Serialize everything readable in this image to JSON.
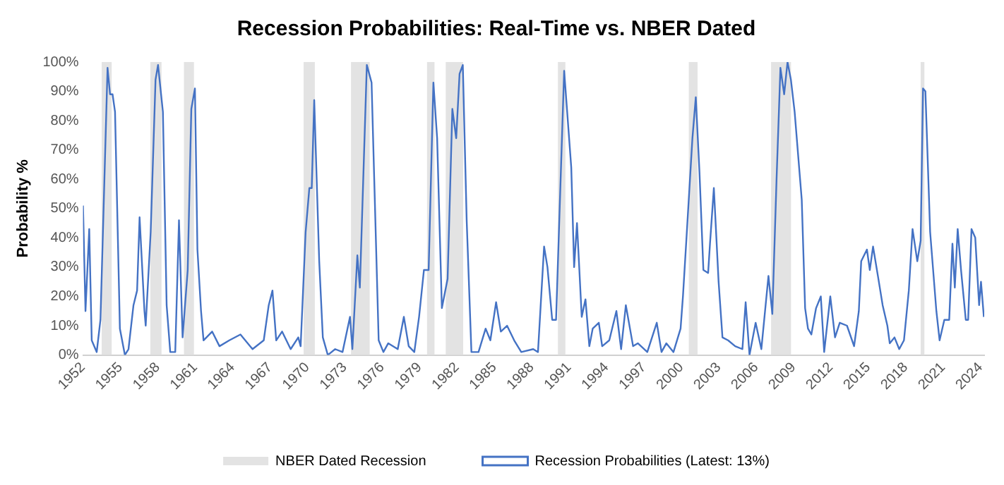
{
  "chart_data": {
    "type": "line",
    "title": "Recession Probabilities: Real-Time vs. NBER Dated",
    "ylabel": "Probability %",
    "xlim": [
      1952,
      2024.3
    ],
    "xticks": [
      1952,
      1955,
      1958,
      1961,
      1964,
      1967,
      1970,
      1973,
      1976,
      1979,
      1982,
      1985,
      1988,
      1991,
      1994,
      1997,
      2000,
      2003,
      2006,
      2009,
      2012,
      2015,
      2018,
      2021,
      2024
    ],
    "ylim": [
      0,
      100
    ],
    "yticks": [
      {
        "value": 0,
        "label": "0%"
      },
      {
        "value": 10,
        "label": "10%"
      },
      {
        "value": 20,
        "label": "20%"
      },
      {
        "value": 30,
        "label": "30%"
      },
      {
        "value": 40,
        "label": "40%"
      },
      {
        "value": 50,
        "label": "50%"
      },
      {
        "value": 60,
        "label": "60%"
      },
      {
        "value": 70,
        "label": "70%"
      },
      {
        "value": 80,
        "label": "80%"
      },
      {
        "value": 90,
        "label": "90%"
      },
      {
        "value": 100,
        "label": "100%"
      }
    ],
    "grid": false,
    "legend": "bottom",
    "bands": [
      {
        "axis": "x",
        "from": 1953.5,
        "to": 1954.3,
        "label": "NBER Dated Recession",
        "color": "#e3e3e3"
      },
      {
        "axis": "x",
        "from": 1957.4,
        "to": 1958.3,
        "color": "#e3e3e3"
      },
      {
        "axis": "x",
        "from": 1960.1,
        "to": 1960.9,
        "color": "#e3e3e3"
      },
      {
        "axis": "x",
        "from": 1969.7,
        "to": 1970.6,
        "color": "#e3e3e3"
      },
      {
        "axis": "x",
        "from": 1973.5,
        "to": 1975.0,
        "color": "#e3e3e3"
      },
      {
        "axis": "x",
        "from": 1979.6,
        "to": 1980.2,
        "color": "#e3e3e3"
      },
      {
        "axis": "x",
        "from": 1981.1,
        "to": 1982.5,
        "color": "#e3e3e3"
      },
      {
        "axis": "x",
        "from": 1990.1,
        "to": 1990.7,
        "color": "#e3e3e3"
      },
      {
        "axis": "x",
        "from": 2000.6,
        "to": 2001.3,
        "color": "#e3e3e3"
      },
      {
        "axis": "x",
        "from": 2007.2,
        "to": 2008.8,
        "color": "#e3e3e3"
      },
      {
        "axis": "x",
        "from": 2019.2,
        "to": 2019.5,
        "color": "#e3e3e3"
      }
    ],
    "series": [
      {
        "name": "Recession Probabilities (Latest: 13%)",
        "color": "#4472c4",
        "x": [
          1952.0,
          1952.2,
          1952.5,
          1952.7,
          1953.1,
          1953.4,
          1953.97,
          1954.17,
          1954.37,
          1954.57,
          1954.96,
          1955.36,
          1955.65,
          1956.05,
          1956.34,
          1956.54,
          1956.93,
          1957.03,
          1957.43,
          1957.82,
          1958.02,
          1958.41,
          1958.71,
          1959.0,
          1959.4,
          1959.7,
          1959.99,
          1960.4,
          1960.69,
          1960.98,
          1961.18,
          1961.47,
          1961.67,
          1962.36,
          1962.95,
          1963.74,
          1964.63,
          1965.6,
          1966.5,
          1966.9,
          1967.2,
          1967.5,
          1967.97,
          1968.66,
          1969.27,
          1969.46,
          1969.86,
          1970.16,
          1970.35,
          1970.55,
          1970.95,
          1971.24,
          1971.64,
          1972.23,
          1972.82,
          1973.42,
          1973.61,
          1974.01,
          1974.21,
          1974.77,
          1975.15,
          1975.72,
          1976.1,
          1976.49,
          1977.25,
          1977.74,
          1978.13,
          1978.58,
          1978.96,
          1979.35,
          1979.73,
          1980.11,
          1980.41,
          1980.79,
          1981.25,
          1981.63,
          1981.94,
          1982.21,
          1982.47,
          1982.78,
          1983.16,
          1983.73,
          1984.3,
          1984.68,
          1985.14,
          1985.52,
          1986.02,
          1986.59,
          1987.16,
          1988.12,
          1988.5,
          1988.99,
          1989.26,
          1989.64,
          1989.95,
          1990.6,
          1991.17,
          1991.4,
          1991.63,
          1992.01,
          1992.31,
          1992.62,
          1992.89,
          1993.38,
          1993.65,
          1994.22,
          1994.79,
          1995.17,
          1995.55,
          1996.13,
          1996.51,
          1997.27,
          1998.03,
          1998.41,
          1998.8,
          1999.37,
          1999.94,
          2000.13,
          2000.4,
          2000.89,
          2001.16,
          2001.46,
          2001.77,
          2002.15,
          2002.3,
          2002.61,
          2002.99,
          2003.3,
          2003.75,
          2004.32,
          2004.9,
          2005.16,
          2005.47,
          2005.96,
          2006.42,
          2006.99,
          2007.3,
          2007.64,
          2007.95,
          2008.25,
          2008.52,
          2008.79,
          2009.09,
          2009.66,
          2009.93,
          2010.16,
          2010.43,
          2010.81,
          2011.19,
          2011.46,
          2011.95,
          2012.33,
          2012.71,
          2013.29,
          2013.86,
          2014.24,
          2014.43,
          2014.89,
          2015.12,
          2015.38,
          2015.77,
          2016.15,
          2016.53,
          2016.72,
          2017.1,
          2017.48,
          2017.86,
          2018.25,
          2018.55,
          2018.93,
          2019.2,
          2019.39,
          2019.58,
          2019.96,
          2020.46,
          2020.72,
          2021.1,
          2021.49,
          2021.75,
          2021.94,
          2022.17,
          2022.44,
          2022.82,
          2023.01,
          2023.28,
          2023.58,
          2023.89,
          2024.04,
          2024.27
        ],
        "values": [
          51,
          15,
          43,
          5,
          1,
          12,
          98,
          89,
          89,
          83,
          9,
          0,
          2,
          17,
          22,
          47,
          15,
          10,
          42,
          94,
          99,
          83,
          17,
          1,
          1,
          46,
          6,
          29,
          84,
          91,
          36,
          15,
          5,
          8,
          3,
          5,
          7,
          2,
          5,
          17,
          22,
          5,
          8,
          2,
          6,
          3,
          42,
          57,
          57,
          87,
          32,
          6,
          0,
          2,
          1,
          13,
          2,
          34,
          23,
          99,
          93,
          5,
          1,
          4,
          2,
          13,
          3,
          1,
          13,
          29,
          29,
          93,
          74,
          16,
          26,
          84,
          74,
          96,
          99,
          46,
          1,
          1,
          9,
          5,
          18,
          8,
          10,
          5,
          1,
          2,
          1,
          37,
          30,
          12,
          12,
          97,
          64,
          30,
          45,
          13,
          19,
          3,
          9,
          11,
          3,
          5,
          15,
          2,
          17,
          3,
          4,
          1,
          11,
          1,
          4,
          1,
          9,
          20,
          39,
          74,
          88,
          62,
          29,
          28,
          38,
          57,
          25,
          6,
          5,
          3,
          2,
          18,
          0,
          11,
          2,
          27,
          14,
          60,
          98,
          89,
          100,
          94,
          83,
          53,
          16,
          9,
          7,
          16,
          20,
          1,
          20,
          6,
          11,
          10,
          3,
          15,
          32,
          36,
          29,
          37,
          27,
          17,
          10,
          4,
          6,
          2,
          5,
          22,
          43,
          32,
          39,
          91,
          90,
          42,
          15,
          5,
          12,
          12,
          38,
          23,
          43,
          29,
          12,
          12,
          43,
          40,
          17,
          25,
          13
        ]
      }
    ]
  }
}
